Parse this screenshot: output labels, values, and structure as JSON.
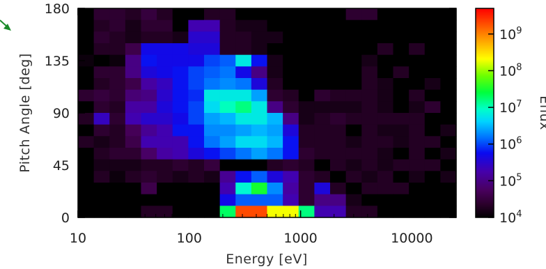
{
  "chart_data": {
    "type": "heatmap",
    "title": "",
    "xlabel": "Energy [eV]",
    "ylabel": "Pitch Angle [deg]",
    "x_scale": "log",
    "xlim": [
      10,
      25000
    ],
    "ylim": [
      0,
      180
    ],
    "x_ticks": [
      10,
      100,
      1000,
      10000
    ],
    "x_tick_labels": [
      "10",
      "100",
      "1000",
      "10000"
    ],
    "y_ticks": [
      0,
      45,
      90,
      135,
      180
    ],
    "y_tick_labels": [
      "0",
      "45",
      "90",
      "135",
      "180"
    ],
    "colorbar": {
      "label": "Eflux",
      "scale": "log",
      "range": [
        10000,
        5000000000
      ],
      "tick_values": [
        10000,
        100000,
        1000000,
        10000000,
        100000000,
        1000000000
      ],
      "tick_labels": [
        {
          "base": "10",
          "exp": "4"
        },
        {
          "base": "10",
          "exp": "5"
        },
        {
          "base": "10",
          "exp": "6"
        },
        {
          "base": "10",
          "exp": "7"
        },
        {
          "base": "10",
          "exp": "8"
        },
        {
          "base": "10",
          "exp": "9"
        }
      ]
    },
    "n_energy_bins": 24,
    "n_pitch_bins": 18,
    "pitch_bin_width_deg": 10,
    "log10_eflux_rows_top_to_bottom": [
      [
        3.9,
        4.4,
        4.4,
        4.3,
        4.5,
        4.3,
        4.0,
        4.0,
        4.3,
        4.3,
        3.8,
        3.8,
        3.8,
        3.8,
        3.8,
        3.8,
        3.8,
        4.4,
        4.4,
        3.8,
        3.8,
        3.8,
        3.8,
        3.8
      ],
      [
        3.8,
        4.3,
        4.4,
        4.2,
        4.4,
        4.4,
        4.0,
        5.3,
        5.3,
        4.3,
        4.2,
        4.2,
        3.8,
        3.8,
        3.8,
        3.8,
        3.8,
        3.8,
        3.8,
        3.8,
        3.8,
        3.8,
        3.8,
        3.8
      ],
      [
        3.8,
        4.4,
        4.3,
        4.2,
        4.3,
        4.3,
        4.2,
        5.5,
        5.5,
        4.3,
        4.3,
        4.2,
        4.2,
        3.8,
        3.8,
        3.8,
        3.8,
        3.8,
        3.8,
        3.8,
        3.8,
        3.8,
        3.8,
        3.8
      ],
      [
        3.8,
        4.3,
        4.3,
        4.6,
        5.7,
        5.7,
        5.7,
        5.6,
        5.6,
        4.3,
        4.3,
        4.2,
        3.8,
        3.8,
        3.8,
        3.8,
        3.8,
        3.8,
        3.8,
        4.3,
        3.8,
        4.3,
        3.8,
        3.8
      ],
      [
        4.1,
        4.0,
        4.1,
        5.0,
        5.8,
        5.7,
        5.7,
        5.7,
        6.0,
        6.1,
        6.8,
        5.8,
        4.2,
        3.8,
        3.8,
        3.8,
        3.8,
        3.8,
        4.2,
        3.8,
        3.8,
        3.8,
        3.8,
        3.8
      ],
      [
        3.9,
        4.4,
        4.4,
        5.0,
        5.6,
        5.7,
        5.8,
        6.0,
        6.1,
        6.2,
        5.7,
        5.0,
        4.2,
        3.8,
        3.8,
        3.8,
        3.8,
        3.8,
        4.3,
        3.8,
        4.3,
        3.8,
        3.8,
        3.8
      ],
      [
        3.8,
        4.3,
        4.4,
        4.6,
        5.2,
        5.4,
        5.8,
        6.0,
        6.2,
        6.3,
        6.2,
        5.6,
        4.3,
        3.8,
        3.8,
        4.0,
        4.0,
        3.8,
        4.3,
        4.2,
        3.8,
        3.8,
        4.2,
        3.8
      ],
      [
        4.4,
        4.5,
        4.4,
        4.9,
        5.0,
        5.5,
        5.8,
        5.9,
        6.8,
        6.8,
        6.8,
        6.4,
        4.4,
        4.3,
        3.8,
        4.4,
        4.3,
        4.3,
        4.3,
        4.2,
        3.8,
        4.3,
        3.8,
        3.8
      ],
      [
        3.8,
        4.4,
        4.3,
        5.2,
        5.2,
        5.6,
        5.8,
        6.0,
        6.7,
        7.0,
        7.2,
        6.8,
        5.0,
        4.4,
        4.2,
        4.2,
        4.2,
        4.2,
        4.3,
        4.2,
        3.8,
        4.2,
        4.4,
        3.8
      ],
      [
        4.3,
        5.4,
        4.4,
        5.3,
        5.5,
        5.5,
        5.7,
        6.0,
        6.4,
        6.5,
        6.8,
        6.8,
        6.5,
        5.0,
        4.2,
        4.3,
        4.4,
        4.3,
        4.3,
        4.3,
        4.3,
        4.3,
        3.8,
        3.8
      ],
      [
        3.9,
        4.4,
        4.3,
        4.7,
        5.1,
        5.3,
        5.8,
        5.8,
        6.3,
        6.3,
        6.4,
        6.5,
        6.4,
        5.6,
        4.3,
        4.3,
        4.3,
        3.8,
        4.3,
        4.2,
        4.2,
        4.3,
        3.8,
        4.2
      ],
      [
        4.3,
        4.2,
        4.3,
        4.6,
        5.3,
        5.3,
        5.3,
        5.8,
        6.2,
        6.4,
        6.7,
        6.7,
        6.5,
        5.8,
        4.3,
        4.3,
        4.3,
        4.2,
        4.3,
        4.3,
        4.2,
        4.3,
        4.3,
        3.8
      ],
      [
        3.8,
        4.3,
        4.4,
        4.4,
        4.8,
        5.2,
        5.3,
        5.6,
        5.8,
        6.0,
        6.2,
        6.4,
        6.2,
        5.8,
        4.4,
        4.3,
        4.3,
        4.3,
        4.3,
        4.2,
        3.8,
        4.3,
        3.8,
        4.2
      ],
      [
        3.9,
        4.2,
        4.2,
        4.2,
        4.3,
        4.3,
        4.4,
        4.3,
        4.5,
        3.8,
        3.8,
        4.0,
        4.3,
        4.4,
        4.3,
        3.8,
        4.3,
        4.2,
        4.3,
        4.2,
        4.3,
        4.3,
        4.3,
        3.8
      ],
      [
        3.9,
        4.3,
        4.1,
        4.3,
        4.4,
        4.3,
        4.2,
        4.3,
        4.2,
        5.1,
        5.8,
        6.1,
        5.6,
        5.3,
        4.4,
        4.3,
        4.0,
        4.3,
        4.2,
        4.3,
        3.8,
        4.2,
        3.8,
        4.2
      ],
      [
        3.8,
        3.8,
        3.8,
        3.8,
        4.6,
        3.8,
        3.8,
        3.8,
        3.8,
        5.3,
        6.9,
        7.5,
        6.3,
        5.2,
        4.4,
        5.6,
        4.3,
        3.8,
        4.3,
        4.3,
        4.3,
        3.8,
        3.8,
        3.8
      ],
      [
        3.8,
        3.8,
        3.8,
        3.8,
        3.8,
        3.8,
        3.8,
        3.8,
        3.8,
        5.7,
        6.1,
        6.1,
        6.1,
        5.3,
        4.4,
        5.0,
        5.0,
        4.2,
        3.8,
        3.8,
        3.8,
        3.8,
        3.8,
        3.8
      ],
      [
        3.8,
        3.8,
        3.8,
        3.8,
        4.3,
        4.3,
        3.8,
        3.8,
        3.8,
        7.3,
        9.3,
        9.3,
        8.3,
        8.3,
        7.2,
        5.3,
        5.3,
        4.3,
        4.3,
        3.8,
        3.8,
        3.8,
        3.8,
        3.8
      ]
    ]
  }
}
